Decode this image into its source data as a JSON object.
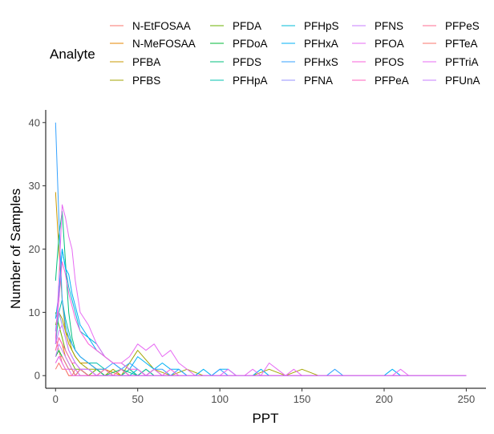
{
  "chart_data": {
    "type": "line",
    "xlabel": "PPT",
    "ylabel": "Number of Samples",
    "xlim": [
      -6,
      262
    ],
    "ylim": [
      -2,
      42
    ],
    "xticks": [
      0,
      50,
      100,
      150,
      200,
      250
    ],
    "yticks": [
      0,
      10,
      20,
      30,
      40
    ],
    "grid": false,
    "legend": {
      "title": "Analyte",
      "position": "top",
      "columns": 5
    },
    "series": [
      {
        "name": "N-EtFOSAA",
        "color": "#F8766D",
        "x": [
          0,
          2,
          4,
          6,
          8,
          10,
          12,
          15,
          20,
          250
        ],
        "y": [
          6,
          4,
          2,
          1,
          0,
          0,
          1,
          0,
          0,
          0
        ]
      },
      {
        "name": "N-MeFOSAA",
        "color": "#E58700",
        "x": [
          0,
          2,
          4,
          6,
          8,
          10,
          12,
          15,
          20,
          25,
          30,
          40,
          50,
          250
        ],
        "y": [
          4,
          6,
          5,
          3,
          2,
          1,
          0,
          1,
          0,
          0,
          1,
          0,
          0,
          0
        ]
      },
      {
        "name": "PFBA",
        "color": "#C99800",
        "x": [
          0,
          2,
          4,
          6,
          8,
          10,
          12,
          15,
          20,
          25,
          30,
          35,
          40,
          45,
          50,
          55,
          60,
          250
        ],
        "y": [
          29,
          20,
          12,
          7,
          5,
          4,
          3,
          2,
          2,
          1,
          1,
          0,
          0,
          1,
          0,
          1,
          0,
          0
        ]
      },
      {
        "name": "PFBS",
        "color": "#A3A500",
        "x": [
          0,
          2,
          4,
          6,
          8,
          10,
          12,
          15,
          20,
          25,
          30,
          35,
          40,
          45,
          50,
          60,
          70,
          80,
          90,
          100,
          110,
          120,
          130,
          140,
          150,
          160,
          170,
          250
        ],
        "y": [
          8,
          10,
          9,
          7,
          6,
          4,
          3,
          2,
          1,
          1,
          0,
          1,
          0,
          2,
          4,
          1,
          0,
          1,
          0,
          0,
          0,
          0,
          1,
          0,
          1,
          0,
          0,
          0
        ]
      },
      {
        "name": "PFDA",
        "color": "#6BB100",
        "x": [
          0,
          2,
          4,
          6,
          8,
          10,
          12,
          15,
          20,
          25,
          30,
          250
        ],
        "y": [
          10,
          8,
          6,
          4,
          3,
          2,
          1,
          1,
          0,
          1,
          0,
          0
        ]
      },
      {
        "name": "PFDoA",
        "color": "#00BA38",
        "x": [
          0,
          2,
          4,
          6,
          8,
          10,
          12,
          15,
          20,
          25,
          30,
          40,
          50,
          250
        ],
        "y": [
          3,
          4,
          3,
          2,
          1,
          1,
          0,
          1,
          0,
          0,
          0,
          0,
          0,
          0
        ]
      },
      {
        "name": "PFDS",
        "color": "#00BF7D",
        "x": [
          0,
          2,
          4,
          6,
          8,
          10,
          12,
          15,
          20,
          25,
          30,
          40,
          50,
          250
        ],
        "y": [
          15,
          22,
          26,
          18,
          10,
          6,
          4,
          3,
          2,
          1,
          0,
          1,
          0,
          0
        ]
      },
      {
        "name": "PFHpA",
        "color": "#00C0AF",
        "x": [
          0,
          2,
          4,
          6,
          8,
          10,
          12,
          15,
          20,
          25,
          30,
          35,
          40,
          45,
          50,
          55,
          60,
          65,
          70,
          250
        ],
        "y": [
          5,
          10,
          12,
          9,
          7,
          5,
          4,
          3,
          2,
          2,
          1,
          0,
          0,
          1,
          0,
          1,
          0,
          0,
          0,
          0
        ]
      },
      {
        "name": "PFHpS",
        "color": "#00BCD8",
        "x": [
          0,
          2,
          4,
          6,
          8,
          10,
          12,
          15,
          20,
          25,
          30,
          35,
          40,
          45,
          50,
          55,
          60,
          65,
          70,
          75,
          80,
          250
        ],
        "y": [
          7,
          12,
          20,
          17,
          14,
          12,
          10,
          7,
          6,
          5,
          3,
          2,
          1,
          0,
          1,
          0,
          1,
          0,
          0,
          0,
          0,
          0
        ]
      },
      {
        "name": "PFHxA",
        "color": "#00B0F6",
        "x": [
          0,
          2,
          4,
          6,
          8,
          10,
          12,
          15,
          20,
          25,
          30,
          35,
          40,
          45,
          50,
          55,
          60,
          65,
          70,
          75,
          80,
          85,
          90,
          95,
          100,
          105,
          110,
          115,
          120,
          125,
          130,
          135,
          140,
          145,
          150,
          155,
          160,
          165,
          170,
          175,
          180,
          185,
          190,
          195,
          200,
          205,
          210,
          215,
          220,
          250
        ],
        "y": [
          9,
          13,
          20,
          17,
          16,
          13,
          11,
          8,
          6,
          4,
          3,
          2,
          2,
          1,
          3,
          2,
          1,
          2,
          1,
          1,
          0,
          0,
          1,
          0,
          1,
          1,
          0,
          0,
          0,
          1,
          0,
          0,
          0,
          0,
          0,
          0,
          0,
          0,
          0,
          0,
          0,
          0,
          0,
          0,
          0,
          1,
          0,
          0,
          0,
          0
        ]
      },
      {
        "name": "PFHxS",
        "color": "#35A2FF",
        "x": [
          0,
          2,
          4,
          6,
          8,
          10,
          12,
          15,
          20,
          25,
          30,
          35,
          40,
          45,
          50,
          55,
          60,
          65,
          70,
          75,
          80,
          85,
          90,
          95,
          100,
          105,
          110,
          115,
          120,
          125,
          130,
          135,
          140,
          145,
          150,
          155,
          160,
          165,
          170,
          175,
          180,
          250
        ],
        "y": [
          40,
          25,
          12,
          8,
          6,
          5,
          4,
          3,
          2,
          1,
          1,
          2,
          1,
          2,
          1,
          0,
          1,
          1,
          0,
          1,
          0,
          0,
          0,
          0,
          1,
          0,
          0,
          0,
          0,
          0,
          0,
          0,
          0,
          0,
          0,
          0,
          0,
          0,
          1,
          0,
          0,
          0
        ]
      },
      {
        "name": "PFNA",
        "color": "#9590FF",
        "x": [
          0,
          2,
          4,
          6,
          8,
          10,
          12,
          15,
          20,
          25,
          30,
          250
        ],
        "y": [
          7,
          10,
          8,
          6,
          4,
          3,
          2,
          1,
          1,
          0,
          0,
          0
        ]
      },
      {
        "name": "PFNS",
        "color": "#C77CFF",
        "x": [
          0,
          2,
          4,
          6,
          8,
          10,
          12,
          15,
          20,
          25,
          30,
          250
        ],
        "y": [
          3,
          5,
          4,
          3,
          2,
          1,
          1,
          0,
          0,
          0,
          0,
          0
        ]
      },
      {
        "name": "PFOA",
        "color": "#E76BF3",
        "x": [
          0,
          2,
          4,
          6,
          8,
          10,
          12,
          15,
          20,
          25,
          30,
          35,
          40,
          45,
          50,
          55,
          60,
          65,
          70,
          75,
          80,
          85,
          90,
          95,
          100,
          105,
          110,
          115,
          120,
          125,
          130,
          135,
          140,
          145,
          150,
          155,
          160,
          165,
          170,
          175,
          180,
          185,
          190,
          195,
          200,
          205,
          210,
          215,
          220,
          250
        ],
        "y": [
          5,
          15,
          27,
          25,
          22,
          20,
          15,
          10,
          8,
          5,
          3,
          2,
          2,
          3,
          5,
          4,
          5,
          3,
          4,
          2,
          1,
          0,
          0,
          0,
          0,
          1,
          0,
          0,
          1,
          0,
          2,
          1,
          0,
          1,
          0,
          0,
          0,
          0,
          0,
          0,
          0,
          0,
          0,
          0,
          0,
          0,
          1,
          0,
          0,
          0
        ]
      },
      {
        "name": "PFOS",
        "color": "#FA62DB",
        "x": [
          0,
          2,
          4,
          6,
          8,
          10,
          12,
          15,
          20,
          25,
          30,
          35,
          40,
          45,
          50,
          55,
          60,
          65,
          70,
          75,
          80,
          250
        ],
        "y": [
          6,
          12,
          18,
          16,
          13,
          11,
          9,
          7,
          5,
          4,
          3,
          2,
          2,
          1,
          1,
          0,
          1,
          0,
          1,
          0,
          0,
          0
        ]
      },
      {
        "name": "PFPeA",
        "color": "#FF62BC",
        "x": [
          0,
          2,
          4,
          6,
          8,
          10,
          12,
          15,
          20,
          25,
          30,
          35,
          40,
          45,
          50,
          250
        ],
        "y": [
          4,
          6,
          5,
          4,
          3,
          2,
          2,
          1,
          1,
          0,
          1,
          0,
          1,
          0,
          0,
          0
        ]
      },
      {
        "name": "PFPeS",
        "color": "#FF6C91",
        "x": [
          0,
          2,
          4,
          6,
          8,
          10,
          12,
          15,
          20,
          25,
          30,
          250
        ],
        "y": [
          2,
          3,
          3,
          2,
          1,
          1,
          0,
          1,
          0,
          0,
          0,
          0
        ]
      },
      {
        "name": "PFTeA",
        "color": "#F8766D",
        "x": [
          0,
          2,
          4,
          6,
          8,
          10,
          12,
          15,
          20,
          250
        ],
        "y": [
          1,
          2,
          1,
          1,
          0,
          0,
          0,
          0,
          0,
          0
        ]
      },
      {
        "name": "PFTriA",
        "color": "#E76BF3",
        "x": [
          0,
          2,
          4,
          6,
          8,
          10,
          12,
          15,
          20,
          250
        ],
        "y": [
          2,
          3,
          2,
          1,
          1,
          0,
          0,
          0,
          0,
          0
        ]
      },
      {
        "name": "PFUnA",
        "color": "#C77CFF",
        "x": [
          0,
          2,
          4,
          6,
          8,
          10,
          12,
          15,
          20,
          25,
          30,
          40,
          50,
          250
        ],
        "y": [
          5,
          7,
          8,
          6,
          4,
          3,
          2,
          1,
          1,
          0,
          0,
          0,
          0,
          0
        ]
      }
    ]
  }
}
